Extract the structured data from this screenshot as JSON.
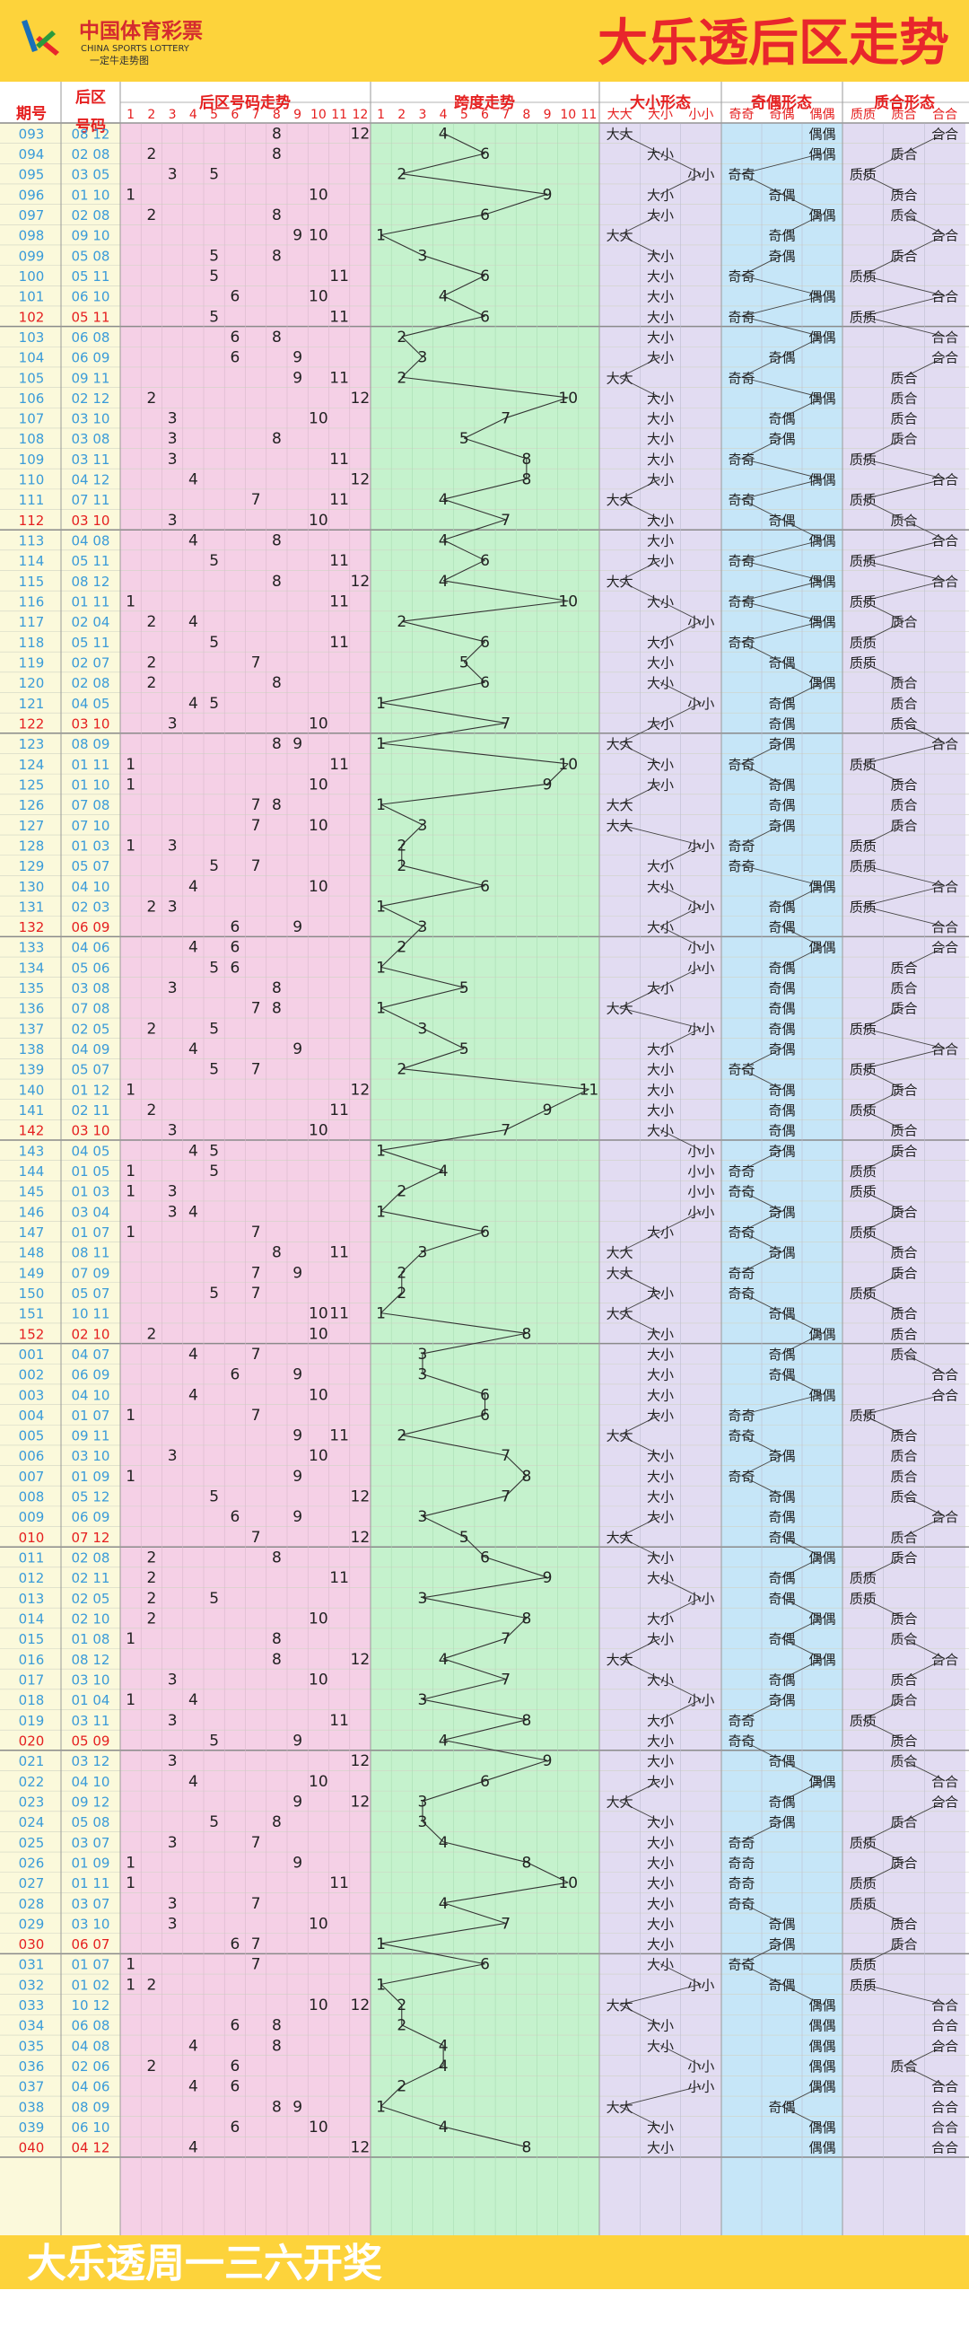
{
  "header": {
    "logo_cn": "中国体育彩票",
    "logo_en": "CHINA SPORTS LOTTERY",
    "logo_tag": "一定牛走势图",
    "title": "大乐透后区走势"
  },
  "columns": {
    "period": "期号",
    "back_l1": "后区",
    "back_l2": "号码",
    "trend": "后区号码走势",
    "span": "跨度走势",
    "size": "大小形态",
    "parity": "奇偶形态",
    "prime": "质合形态"
  },
  "sub_headers": {
    "size": [
      "大大",
      "大小",
      "小小"
    ],
    "parity": [
      "奇奇",
      "奇偶",
      "偶偶"
    ],
    "prime": [
      "质质",
      "质合",
      "合合"
    ]
  },
  "footer": {
    "text": "大乐透周一三六开奖"
  },
  "colors": {
    "header_bg": "#fdd33b",
    "title": "#e8262c",
    "number_col": "#3a9bd9",
    "highlight": "#e52020",
    "trend_bg": "#f5d0e6",
    "span_bg": "#c5f2cd",
    "size_bg": "#e2dcf2",
    "parity_bg": "#c6e6f8",
    "prime_bg": "#e2dcf2",
    "left_bg": "#fbf9db",
    "separator": "#8a8a8a"
  },
  "chart_data": {
    "type": "table",
    "title": "大乐透后区走势",
    "number_range": [
      1,
      12
    ],
    "span_range": [
      1,
      11
    ],
    "rows": [
      {
        "p": "093",
        "n": [
          8,
          12
        ]
      },
      {
        "p": "094",
        "n": [
          2,
          8
        ]
      },
      {
        "p": "095",
        "n": [
          3,
          5
        ]
      },
      {
        "p": "096",
        "n": [
          1,
          10
        ]
      },
      {
        "p": "097",
        "n": [
          2,
          8
        ]
      },
      {
        "p": "098",
        "n": [
          9,
          10
        ]
      },
      {
        "p": "099",
        "n": [
          5,
          8
        ]
      },
      {
        "p": "100",
        "n": [
          5,
          11
        ]
      },
      {
        "p": "101",
        "n": [
          6,
          10
        ]
      },
      {
        "p": "102",
        "n": [
          5,
          11
        ]
      },
      {
        "p": "103",
        "n": [
          6,
          8
        ]
      },
      {
        "p": "104",
        "n": [
          6,
          9
        ]
      },
      {
        "p": "105",
        "n": [
          9,
          11
        ]
      },
      {
        "p": "106",
        "n": [
          2,
          12
        ]
      },
      {
        "p": "107",
        "n": [
          3,
          10
        ]
      },
      {
        "p": "108",
        "n": [
          3,
          8
        ]
      },
      {
        "p": "109",
        "n": [
          3,
          11
        ]
      },
      {
        "p": "110",
        "n": [
          4,
          12
        ]
      },
      {
        "p": "111",
        "n": [
          7,
          11
        ]
      },
      {
        "p": "112",
        "n": [
          3,
          10
        ]
      },
      {
        "p": "113",
        "n": [
          4,
          8
        ]
      },
      {
        "p": "114",
        "n": [
          5,
          11
        ]
      },
      {
        "p": "115",
        "n": [
          8,
          12
        ]
      },
      {
        "p": "116",
        "n": [
          1,
          11
        ]
      },
      {
        "p": "117",
        "n": [
          2,
          4
        ]
      },
      {
        "p": "118",
        "n": [
          5,
          11
        ]
      },
      {
        "p": "119",
        "n": [
          2,
          7
        ]
      },
      {
        "p": "120",
        "n": [
          2,
          8
        ]
      },
      {
        "p": "121",
        "n": [
          4,
          5
        ]
      },
      {
        "p": "122",
        "n": [
          3,
          10
        ]
      },
      {
        "p": "123",
        "n": [
          8,
          9
        ]
      },
      {
        "p": "124",
        "n": [
          1,
          11
        ]
      },
      {
        "p": "125",
        "n": [
          1,
          10
        ]
      },
      {
        "p": "126",
        "n": [
          7,
          8
        ]
      },
      {
        "p": "127",
        "n": [
          7,
          10
        ]
      },
      {
        "p": "128",
        "n": [
          1,
          3
        ]
      },
      {
        "p": "129",
        "n": [
          5,
          7
        ]
      },
      {
        "p": "130",
        "n": [
          4,
          10
        ]
      },
      {
        "p": "131",
        "n": [
          2,
          3
        ]
      },
      {
        "p": "132",
        "n": [
          6,
          9
        ]
      },
      {
        "p": "133",
        "n": [
          4,
          6
        ]
      },
      {
        "p": "134",
        "n": [
          5,
          6
        ]
      },
      {
        "p": "135",
        "n": [
          3,
          8
        ]
      },
      {
        "p": "136",
        "n": [
          7,
          8
        ]
      },
      {
        "p": "137",
        "n": [
          2,
          5
        ]
      },
      {
        "p": "138",
        "n": [
          4,
          9
        ]
      },
      {
        "p": "139",
        "n": [
          5,
          7
        ]
      },
      {
        "p": "140",
        "n": [
          1,
          12
        ]
      },
      {
        "p": "141",
        "n": [
          2,
          11
        ]
      },
      {
        "p": "142",
        "n": [
          3,
          10
        ]
      },
      {
        "p": "143",
        "n": [
          4,
          5
        ]
      },
      {
        "p": "144",
        "n": [
          1,
          5
        ]
      },
      {
        "p": "145",
        "n": [
          1,
          3
        ]
      },
      {
        "p": "146",
        "n": [
          3,
          4
        ]
      },
      {
        "p": "147",
        "n": [
          1,
          7
        ]
      },
      {
        "p": "148",
        "n": [
          8,
          11
        ]
      },
      {
        "p": "149",
        "n": [
          7,
          9
        ]
      },
      {
        "p": "150",
        "n": [
          5,
          7
        ]
      },
      {
        "p": "151",
        "n": [
          10,
          11
        ]
      },
      {
        "p": "152",
        "n": [
          2,
          10
        ]
      },
      {
        "p": "001",
        "n": [
          4,
          7
        ]
      },
      {
        "p": "002",
        "n": [
          6,
          9
        ]
      },
      {
        "p": "003",
        "n": [
          4,
          10
        ]
      },
      {
        "p": "004",
        "n": [
          1,
          7
        ]
      },
      {
        "p": "005",
        "n": [
          9,
          11
        ]
      },
      {
        "p": "006",
        "n": [
          3,
          10
        ]
      },
      {
        "p": "007",
        "n": [
          1,
          9
        ]
      },
      {
        "p": "008",
        "n": [
          5,
          12
        ]
      },
      {
        "p": "009",
        "n": [
          6,
          9
        ]
      },
      {
        "p": "010",
        "n": [
          7,
          12
        ]
      },
      {
        "p": "011",
        "n": [
          2,
          8
        ]
      },
      {
        "p": "012",
        "n": [
          2,
          11
        ]
      },
      {
        "p": "013",
        "n": [
          2,
          5
        ]
      },
      {
        "p": "014",
        "n": [
          2,
          10
        ]
      },
      {
        "p": "015",
        "n": [
          1,
          8
        ]
      },
      {
        "p": "016",
        "n": [
          8,
          12
        ]
      },
      {
        "p": "017",
        "n": [
          3,
          10
        ]
      },
      {
        "p": "018",
        "n": [
          1,
          4
        ]
      },
      {
        "p": "019",
        "n": [
          3,
          11
        ]
      },
      {
        "p": "020",
        "n": [
          5,
          9
        ]
      },
      {
        "p": "021",
        "n": [
          3,
          12
        ]
      },
      {
        "p": "022",
        "n": [
          4,
          10
        ]
      },
      {
        "p": "023",
        "n": [
          9,
          12
        ]
      },
      {
        "p": "024",
        "n": [
          5,
          8
        ]
      },
      {
        "p": "025",
        "n": [
          3,
          7
        ]
      },
      {
        "p": "026",
        "n": [
          1,
          9
        ]
      },
      {
        "p": "027",
        "n": [
          1,
          11
        ]
      },
      {
        "p": "028",
        "n": [
          3,
          7
        ]
      },
      {
        "p": "029",
        "n": [
          3,
          10
        ]
      },
      {
        "p": "030",
        "n": [
          6,
          7
        ]
      },
      {
        "p": "031",
        "n": [
          1,
          7
        ]
      },
      {
        "p": "032",
        "n": [
          1,
          2
        ]
      },
      {
        "p": "033",
        "n": [
          10,
          12
        ]
      },
      {
        "p": "034",
        "n": [
          6,
          8
        ]
      },
      {
        "p": "035",
        "n": [
          4,
          8
        ]
      },
      {
        "p": "036",
        "n": [
          2,
          6
        ]
      },
      {
        "p": "037",
        "n": [
          4,
          6
        ]
      },
      {
        "p": "038",
        "n": [
          8,
          9
        ]
      },
      {
        "p": "039",
        "n": [
          6,
          10
        ]
      },
      {
        "p": "040",
        "n": [
          4,
          12
        ]
      }
    ]
  }
}
